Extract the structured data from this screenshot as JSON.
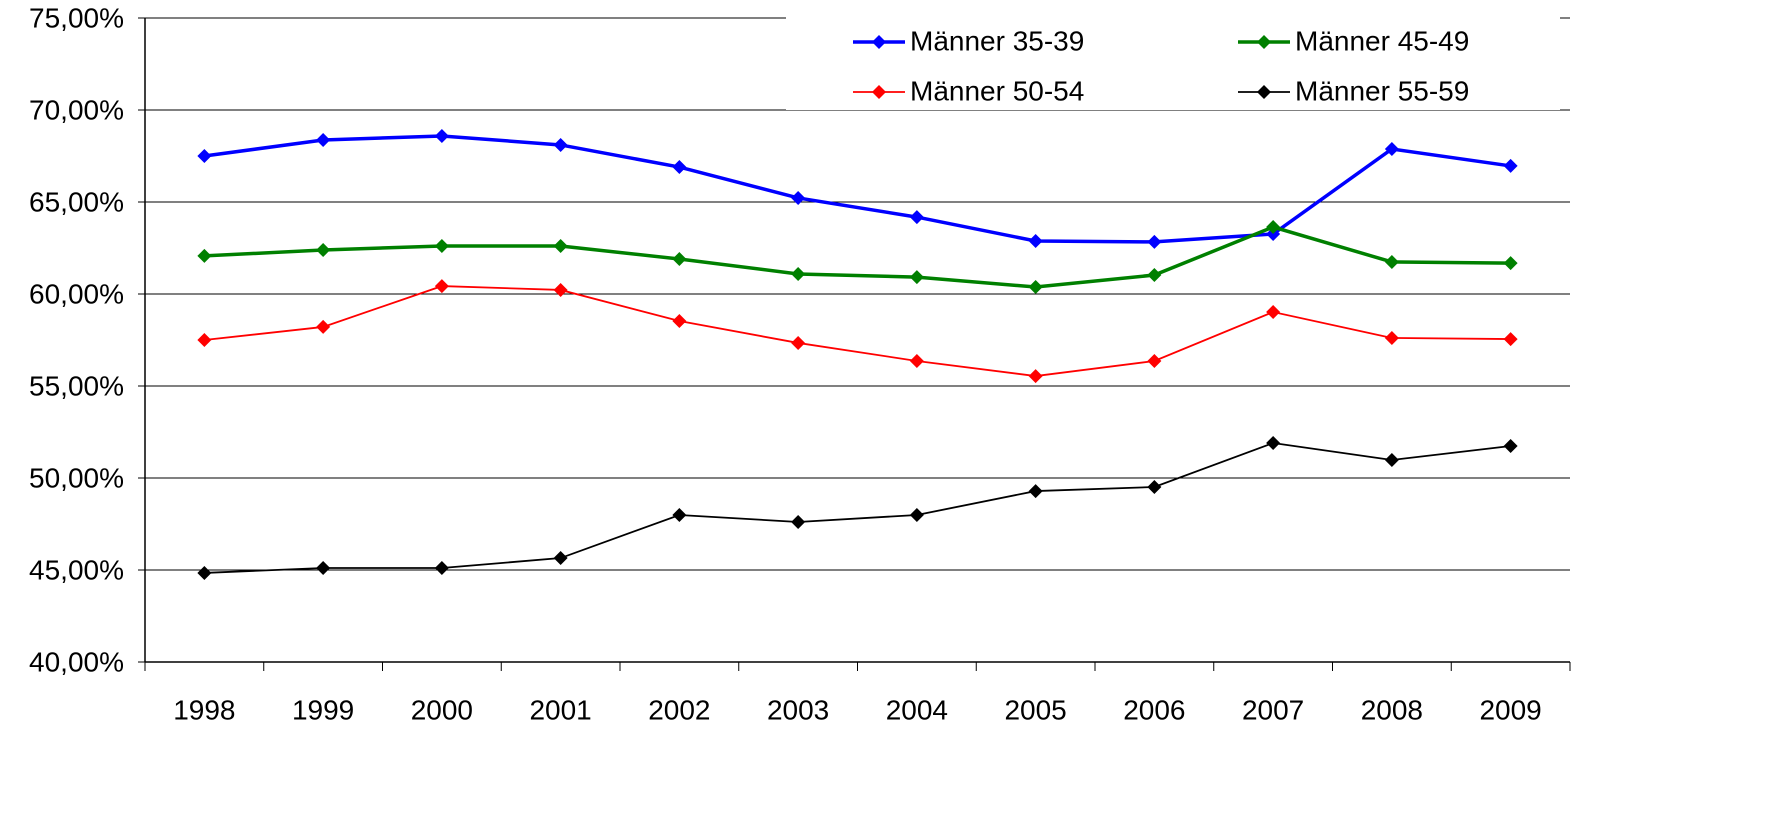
{
  "chart_data": {
    "type": "line",
    "categories": [
      "1998",
      "1999",
      "2000",
      "2001",
      "2002",
      "2003",
      "2004",
      "2005",
      "2006",
      "2007",
      "2008",
      "2009"
    ],
    "series": [
      {
        "name": "Männer 35-39",
        "color": "#0000ff",
        "values": [
          67.5,
          68.37,
          68.59,
          68.1,
          66.9,
          65.22,
          64.18,
          62.88,
          62.83,
          63.26,
          67.88,
          66.96
        ]
      },
      {
        "name": "Männer 45-49",
        "color": "#008000",
        "values": [
          62.07,
          62.39,
          62.61,
          62.61,
          61.9,
          61.09,
          60.92,
          60.38,
          61.03,
          63.64,
          61.74,
          61.68
        ]
      },
      {
        "name": "Männer 50-54",
        "color": "#ff0000",
        "values": [
          57.5,
          58.21,
          60.43,
          60.22,
          58.53,
          57.34,
          56.36,
          55.54,
          56.36,
          59.02,
          57.61,
          57.55
        ]
      },
      {
        "name": "Männer 55-59",
        "color": "#000000",
        "values": [
          44.84,
          45.11,
          45.11,
          45.65,
          47.99,
          47.61,
          47.99,
          49.29,
          49.51,
          51.9,
          50.98,
          51.74
        ]
      }
    ],
    "ylim": [
      40,
      75
    ],
    "yticks": [
      {
        "value": 40,
        "label": "40,00%"
      },
      {
        "value": 45,
        "label": "45,00%"
      },
      {
        "value": 50,
        "label": "50,00%"
      },
      {
        "value": 55,
        "label": "55,00%"
      },
      {
        "value": 60,
        "label": "60,00%"
      },
      {
        "value": 65,
        "label": "65,00%"
      },
      {
        "value": 70,
        "label": "70,00%"
      },
      {
        "value": 75,
        "label": "75,00%"
      }
    ],
    "grid": true
  }
}
